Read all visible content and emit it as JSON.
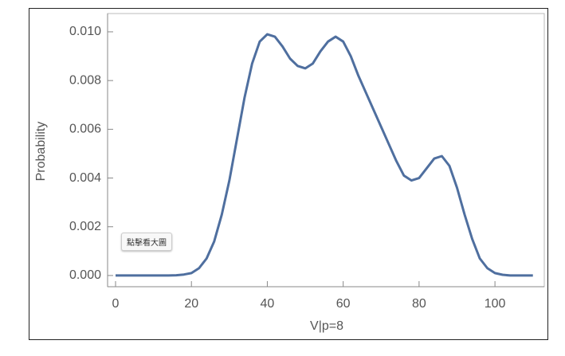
{
  "chart_data": {
    "type": "line",
    "xlabel": "V|p=8",
    "ylabel": "Probability",
    "color": "#4f6f9f",
    "x": [
      0,
      2,
      4,
      6,
      8,
      10,
      12,
      14,
      16,
      18,
      20,
      22,
      24,
      26,
      28,
      30,
      32,
      34,
      36,
      38,
      40,
      42,
      44,
      46,
      48,
      50,
      52,
      54,
      56,
      58,
      60,
      62,
      64,
      66,
      68,
      70,
      72,
      74,
      76,
      78,
      80,
      82,
      84,
      86,
      88,
      90,
      92,
      94,
      96,
      98,
      100,
      102,
      104,
      106,
      108,
      110
    ],
    "values": [
      0,
      0,
      0,
      0,
      0,
      0,
      0,
      0,
      1e-05,
      4e-05,
      0.0001,
      0.0003,
      0.0007,
      0.0014,
      0.0025,
      0.0039,
      0.0056,
      0.0073,
      0.0087,
      0.0096,
      0.0099,
      0.0098,
      0.0094,
      0.0089,
      0.0086,
      0.0085,
      0.0087,
      0.0092,
      0.0096,
      0.0098,
      0.0096,
      0.009,
      0.0082,
      0.0075,
      0.0068,
      0.0061,
      0.0054,
      0.0047,
      0.0041,
      0.0039,
      0.004,
      0.0044,
      0.0048,
      0.0049,
      0.0045,
      0.0036,
      0.0025,
      0.0015,
      0.0007,
      0.0003,
      0.0001,
      3e-05,
      0,
      0,
      0,
      0
    ],
    "xlim": [
      -2.1,
      113
    ],
    "ylim": [
      -0.00046,
      0.01075
    ],
    "xticks": [
      0,
      20,
      40,
      60,
      80,
      100
    ],
    "yticks": [
      {
        "value": 0,
        "label": "0.000"
      },
      {
        "value": 0.002,
        "label": "0.002"
      },
      {
        "value": 0.004,
        "label": "0.004"
      },
      {
        "value": 0.006,
        "label": "0.006"
      },
      {
        "value": 0.008,
        "label": "0.008"
      },
      {
        "value": 0.01,
        "label": "0.010"
      }
    ]
  },
  "overlay_button": "點擊看大圖"
}
